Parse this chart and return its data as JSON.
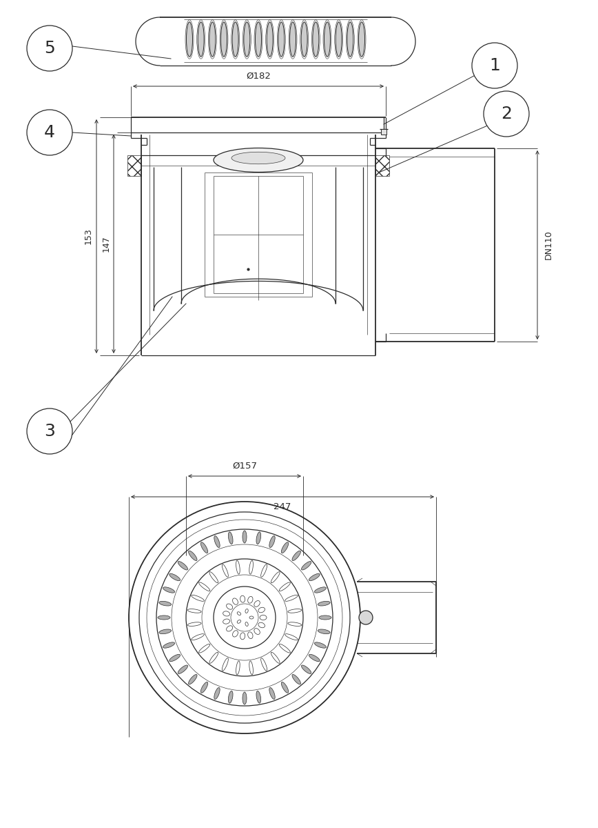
{
  "bg_color": "#ffffff",
  "line_color": "#2a2a2a",
  "lw": 0.9,
  "lw_thin": 0.45,
  "lw_thick": 1.3,
  "fig_width": 8.68,
  "fig_height": 12.0,
  "dpi": 100,
  "dim_182": "Ø182",
  "dim_157": "Ø157",
  "dim_247": "247",
  "dim_153": "153",
  "dim_147": "147",
  "dim_dn110": "DN110"
}
